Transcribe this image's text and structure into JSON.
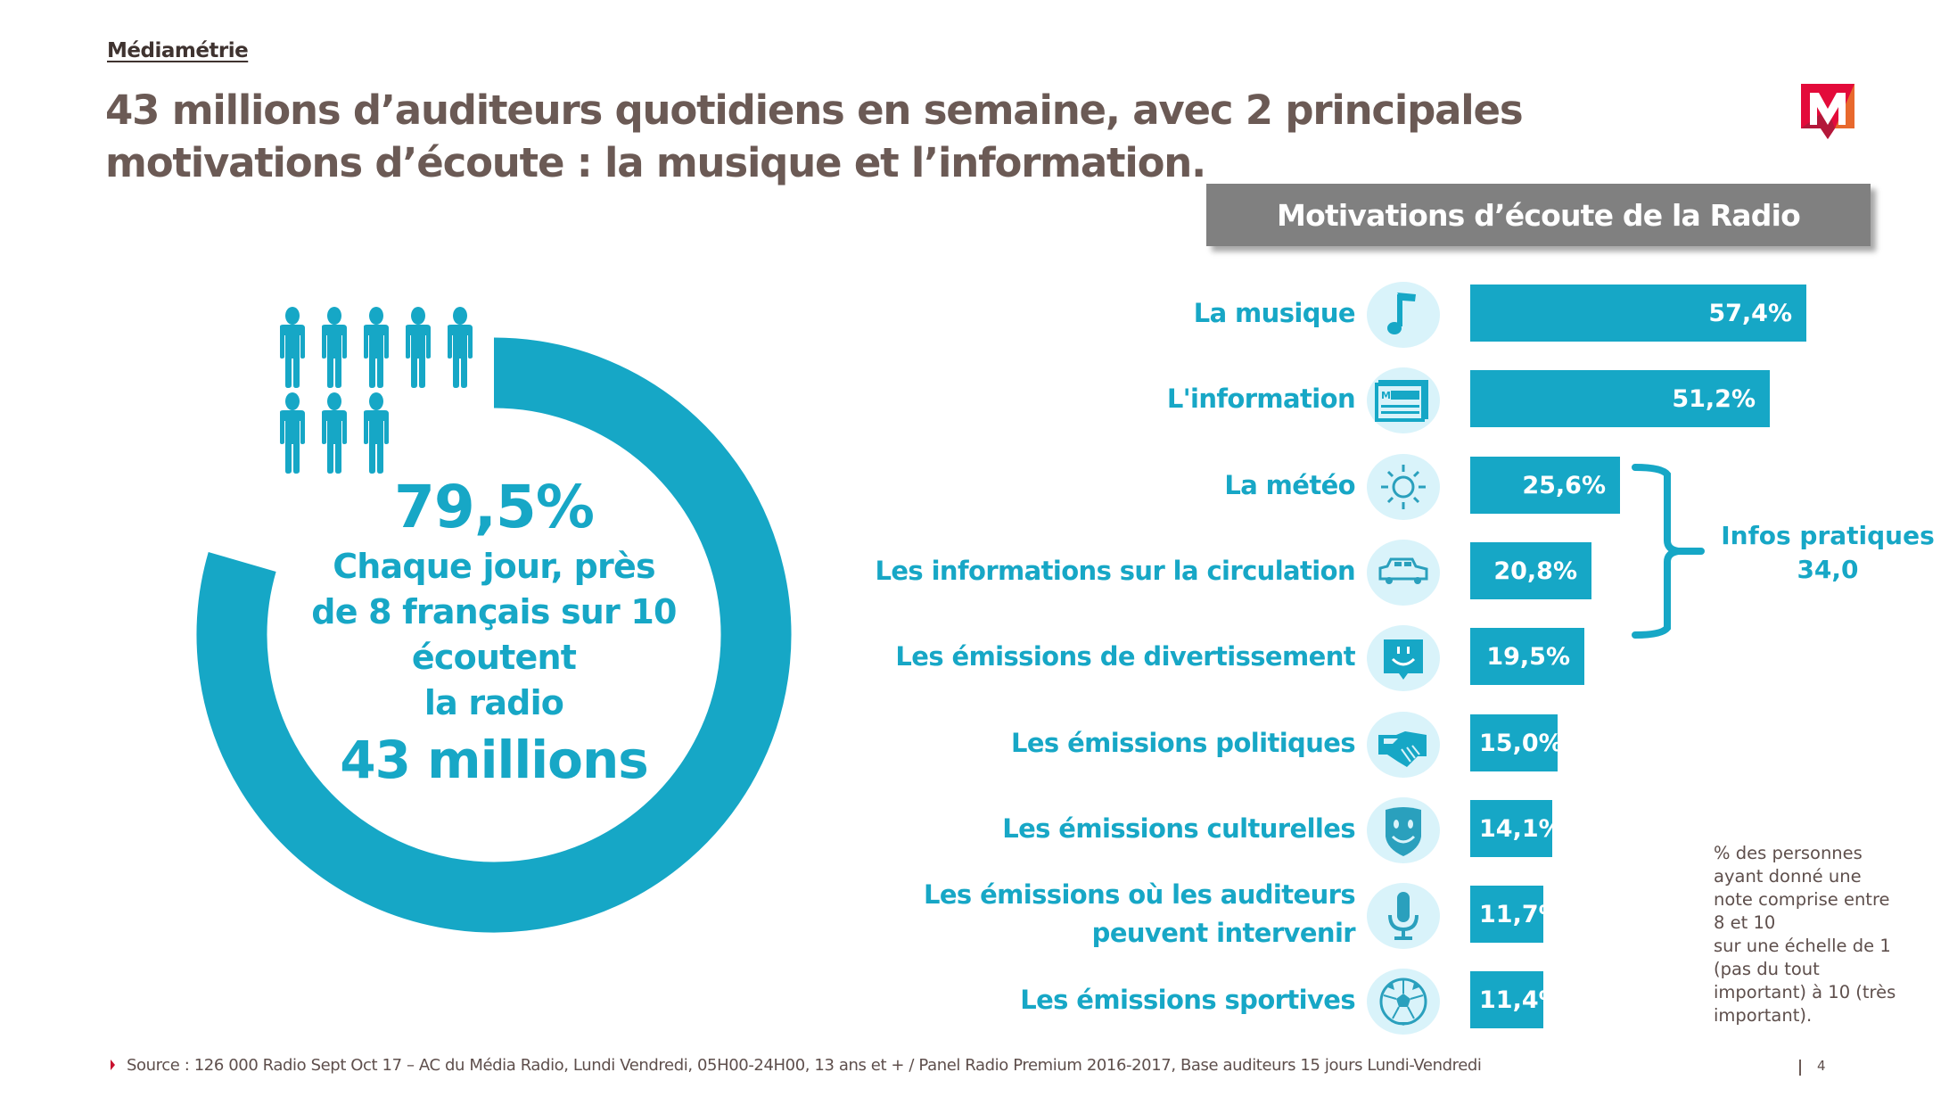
{
  "header": {
    "brand": "Médiamétrie",
    "title": "43 millions d’auditeurs quotidiens en semaine, avec 2 principales motivations d’écoute : la musique et l’information.",
    "logo_icon": "mediametrie-m-logo-icon"
  },
  "donut": {
    "value_label": "79,5%",
    "value": 79.5,
    "description": "Chaque jour, près de 8 français sur 10 écoutent la radio",
    "description_lines": [
      "Chaque jour, près",
      "de 8 français sur 10",
      "écoutent",
      "la radio"
    ],
    "big_number": "43 millions",
    "people_icon": "person-icon",
    "people_count": 8,
    "color": "#16a7c6"
  },
  "panel": {
    "title": "Motivations d’écoute de la Radio"
  },
  "chart_data": {
    "type": "bar",
    "orientation": "horizontal",
    "title": "Motivations d’écoute de la Radio",
    "xlabel": "",
    "ylabel": "",
    "unit": "%",
    "xlim": [
      0,
      60
    ],
    "grid": false,
    "categories": [
      "La musique",
      "L'information",
      "La météo",
      "Les informations sur la circulation",
      "Les émissions de divertissement",
      "Les émissions politiques",
      "Les émissions culturelles",
      "Les émissions où les auditeurs peuvent intervenir",
      "Les émissions sportives"
    ],
    "values": [
      57.4,
      51.2,
      25.6,
      20.8,
      19.5,
      15.0,
      14.1,
      11.7,
      11.4
    ],
    "value_labels": [
      "57,4%",
      "51,2%",
      "25,6%",
      "20,8%",
      "19,5%",
      "15,0%",
      "14,1%",
      "11,7%",
      "11,4%"
    ],
    "icons": [
      "music-note-icon",
      "newspaper-icon",
      "sun-icon",
      "car-icon",
      "smiley-speech-bubble-icon",
      "handshake-icon",
      "mask-icon",
      "microphone-icon",
      "soccer-ball-icon"
    ],
    "bar_color": "#16a7c6",
    "annotation": {
      "label": "Infos pratiques",
      "value": "34,0",
      "groups": [
        "La météo",
        "Les informations sur la circulation"
      ]
    },
    "note": "% des personnes ayant donné une note comprise entre 8 et 10 sur une échelle de 1 (pas du tout important) à 10 (très important)."
  },
  "rows": [
    {
      "label_lines": [
        "La musique"
      ]
    },
    {
      "label_lines": [
        "L'information"
      ]
    },
    {
      "label_lines": [
        "La météo"
      ]
    },
    {
      "label_lines": [
        "Les informations sur la circulation"
      ]
    },
    {
      "label_lines": [
        "Les émissions de divertissement"
      ]
    },
    {
      "label_lines": [
        "Les émissions politiques"
      ]
    },
    {
      "label_lines": [
        "Les émissions culturelles"
      ]
    },
    {
      "label_lines": [
        "Les émissions où les auditeurs",
        "peuvent intervenir"
      ]
    },
    {
      "label_lines": [
        "Les émissions sportives"
      ]
    }
  ],
  "note_lines": [
    "% des personnes",
    "ayant donné une",
    "note comprise entre",
    "8 et 10",
    "sur une échelle de 1",
    "(pas du tout",
    "important) à 10 (très",
    "important)."
  ],
  "footer": {
    "source": "Source : 126 000 Radio Sept Oct 17 – AC du Média Radio, Lundi Vendredi, 05H00-24H00, 13 ans et + / Panel Radio Premium 2016-2017, Base auditeurs 15 jours Lundi-Vendredi",
    "page_number": "4"
  }
}
